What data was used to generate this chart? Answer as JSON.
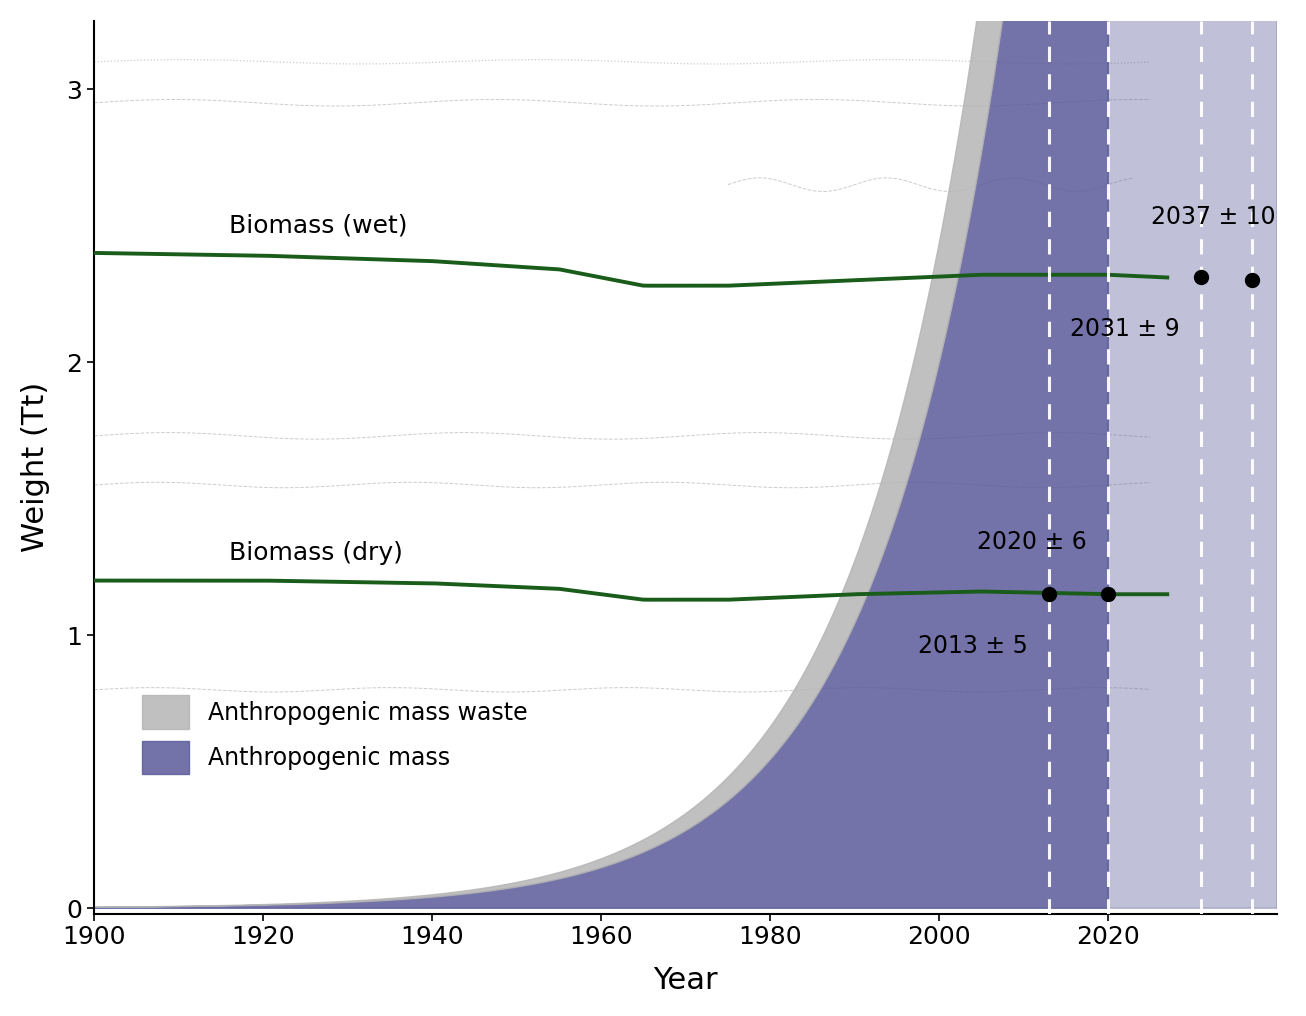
{
  "xlim": [
    1900,
    2040
  ],
  "ylim": [
    -0.02,
    3.25
  ],
  "xlabel": "Year",
  "ylabel": "Weight (Tt)",
  "xticks": [
    1900,
    1920,
    1940,
    1960,
    1980,
    2000,
    2020
  ],
  "yticks": [
    0,
    1,
    2,
    3
  ],
  "biomass_wet_label": "Biomass (wet)",
  "biomass_dry_label": "Biomass (dry)",
  "green_color": "#1a5c1a",
  "gray_color": "#b5b5b5",
  "blue_color": "#5a5a9a",
  "light_gray_line_color": "#cccccc",
  "intersection_years": [
    2013,
    2020,
    2031,
    2037
  ],
  "intersection_labels": [
    "2013 ± 5",
    "2020 ± 6",
    "2031 ± 9",
    "2037 ± 10"
  ],
  "legend_label1": "Anthropogenic mass waste",
  "legend_label2": "Anthropogenic mass",
  "figsize": [
    13.06,
    10.16
  ],
  "dpi": 100
}
